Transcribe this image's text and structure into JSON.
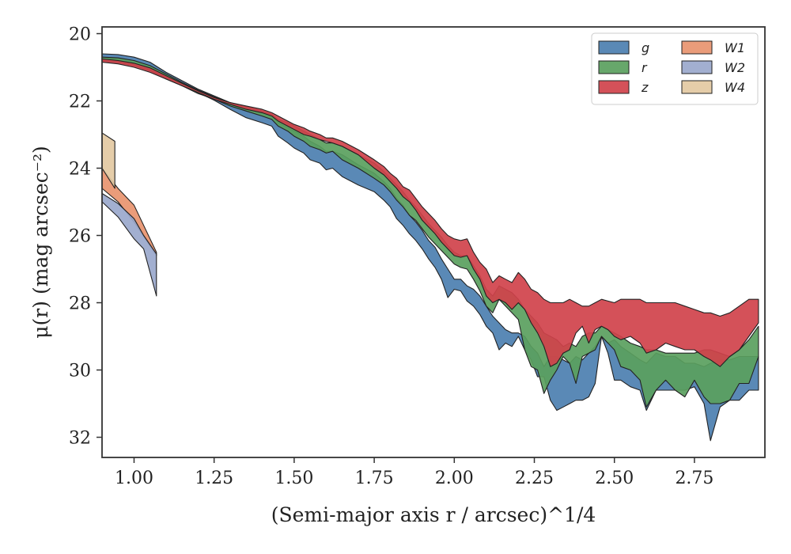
{
  "chart_data": {
    "type": "area",
    "ylabel": "μ(r) (mag arcsec⁻²)",
    "xlabel": "(Semi-major axis r / arcsec)^1/4",
    "xlim": [
      0.9,
      2.97
    ],
    "ylim": [
      32.6,
      19.8
    ],
    "y_inverted": true,
    "grid": false,
    "legend_position": "top-right",
    "legend_columns": 2,
    "x_ticks": [
      1.0,
      1.25,
      1.5,
      1.75,
      2.0,
      2.25,
      2.5,
      2.75
    ],
    "x_tick_labels": [
      "1.00",
      "1.25",
      "1.50",
      "1.75",
      "2.00",
      "2.25",
      "2.50",
      "2.75"
    ],
    "y_ticks": [
      20,
      22,
      24,
      26,
      28,
      30,
      32
    ],
    "y_tick_labels": [
      "20",
      "22",
      "24",
      "26",
      "28",
      "30",
      "32"
    ],
    "series": [
      {
        "name": "g",
        "color": "#4c7fb0",
        "x": [
          0.9,
          0.95,
          1.0,
          1.05,
          1.1,
          1.15,
          1.2,
          1.25,
          1.3,
          1.35,
          1.4,
          1.43,
          1.45,
          1.48,
          1.5,
          1.53,
          1.55,
          1.58,
          1.6,
          1.62,
          1.65,
          1.7,
          1.75,
          1.78,
          1.8,
          1.82,
          1.84,
          1.86,
          1.88,
          1.9,
          1.92,
          1.94,
          1.96,
          1.98,
          2.0,
          2.02,
          2.04,
          2.06,
          2.08,
          2.1,
          2.12,
          2.14,
          2.16,
          2.18,
          2.2,
          2.22,
          2.24,
          2.26,
          2.28,
          2.3,
          2.32,
          2.34,
          2.36,
          2.38,
          2.4,
          2.42,
          2.44,
          2.46,
          2.48,
          2.5,
          2.52,
          2.55,
          2.58,
          2.6,
          2.63,
          2.66,
          2.69,
          2.72,
          2.75,
          2.78,
          2.8,
          2.83,
          2.86,
          2.89,
          2.92,
          2.95
        ],
        "lower": [
          20.6,
          20.62,
          20.7,
          20.85,
          21.15,
          21.4,
          21.65,
          21.85,
          22.05,
          22.2,
          22.35,
          22.45,
          22.65,
          22.8,
          22.9,
          23.05,
          23.2,
          23.35,
          23.5,
          23.5,
          23.6,
          23.9,
          24.15,
          24.4,
          24.6,
          24.9,
          25.1,
          25.4,
          25.6,
          25.85,
          26.15,
          26.35,
          26.7,
          27.0,
          27.3,
          27.3,
          27.5,
          27.6,
          27.8,
          28.1,
          28.4,
          28.6,
          28.8,
          28.9,
          28.9,
          29.0,
          29.3,
          29.5,
          29.9,
          29.6,
          29.6,
          29.7,
          29.8,
          29.6,
          29.7,
          29.5,
          29.3,
          29.0,
          29.2,
          29.1,
          29.3,
          29.5,
          29.7,
          29.8,
          29.5,
          29.6,
          29.6,
          29.8,
          29.8,
          29.9,
          29.8,
          29.7,
          29.7,
          29.6,
          29.6,
          29.6
        ],
        "upper": [
          20.7,
          20.78,
          20.92,
          21.1,
          21.35,
          21.55,
          21.75,
          21.98,
          22.25,
          22.5,
          22.65,
          22.75,
          23.05,
          23.25,
          23.4,
          23.55,
          23.75,
          23.85,
          24.05,
          24.0,
          24.25,
          24.5,
          24.7,
          24.95,
          25.15,
          25.5,
          25.7,
          25.95,
          26.15,
          26.4,
          26.7,
          26.95,
          27.3,
          27.85,
          27.6,
          27.65,
          27.95,
          28.1,
          28.35,
          28.7,
          28.9,
          29.4,
          29.2,
          29.3,
          29.0,
          29.4,
          29.7,
          30.2,
          30.2,
          30.9,
          31.2,
          31.1,
          31.0,
          30.9,
          30.9,
          30.8,
          30.4,
          29.0,
          29.5,
          30.3,
          30.3,
          30.5,
          30.6,
          31.2,
          30.6,
          30.6,
          30.6,
          30.6,
          30.5,
          31.0,
          32.1,
          31.1,
          30.9,
          30.9,
          30.6,
          30.6
        ]
      },
      {
        "name": "r",
        "color": "#5aa05e",
        "x": [
          0.9,
          0.95,
          1.0,
          1.05,
          1.1,
          1.15,
          1.2,
          1.25,
          1.3,
          1.35,
          1.4,
          1.43,
          1.45,
          1.48,
          1.5,
          1.53,
          1.55,
          1.58,
          1.6,
          1.62,
          1.65,
          1.7,
          1.75,
          1.78,
          1.8,
          1.82,
          1.84,
          1.86,
          1.88,
          1.9,
          1.92,
          1.94,
          1.96,
          1.98,
          2.0,
          2.02,
          2.04,
          2.06,
          2.08,
          2.1,
          2.12,
          2.14,
          2.16,
          2.18,
          2.2,
          2.22,
          2.24,
          2.26,
          2.28,
          2.3,
          2.32,
          2.34,
          2.36,
          2.38,
          2.4,
          2.42,
          2.44,
          2.46,
          2.48,
          2.5,
          2.52,
          2.55,
          2.58,
          2.6,
          2.63,
          2.66,
          2.69,
          2.72,
          2.75,
          2.78,
          2.8,
          2.83,
          2.86,
          2.89,
          2.92,
          2.95
        ],
        "lower": [
          20.7,
          20.72,
          20.8,
          20.95,
          21.2,
          21.45,
          21.68,
          21.88,
          22.05,
          22.18,
          22.3,
          22.4,
          22.55,
          22.65,
          22.75,
          22.9,
          23.0,
          23.15,
          23.25,
          23.25,
          23.35,
          23.6,
          23.85,
          24.1,
          24.3,
          24.5,
          24.7,
          24.95,
          25.15,
          25.4,
          25.65,
          25.85,
          26.05,
          26.3,
          26.5,
          26.6,
          26.6,
          26.9,
          27.2,
          27.6,
          27.8,
          27.5,
          27.6,
          27.7,
          27.9,
          28.2,
          28.4,
          28.6,
          28.9,
          29.0,
          29.1,
          29.3,
          29.2,
          29.3,
          29.0,
          28.9,
          28.9,
          28.7,
          28.8,
          28.9,
          29.0,
          29.2,
          29.3,
          29.4,
          29.4,
          29.5,
          29.5,
          29.5,
          29.5,
          29.4,
          29.4,
          29.5,
          29.6,
          29.4,
          29.1,
          28.7
        ],
        "upper": [
          20.8,
          20.85,
          20.95,
          21.1,
          21.3,
          21.55,
          21.78,
          21.95,
          22.15,
          22.3,
          22.45,
          22.55,
          22.75,
          22.9,
          23.05,
          23.2,
          23.35,
          23.45,
          23.55,
          23.5,
          23.75,
          24.0,
          24.3,
          24.5,
          24.7,
          24.95,
          25.15,
          25.4,
          25.55,
          25.8,
          26.05,
          26.25,
          26.45,
          26.65,
          26.85,
          26.95,
          27.0,
          27.3,
          27.65,
          28.1,
          28.3,
          27.9,
          28.1,
          28.3,
          28.5,
          29.4,
          29.9,
          30.0,
          30.7,
          30.3,
          30.0,
          29.6,
          29.8,
          30.4,
          29.6,
          29.5,
          29.4,
          29.0,
          29.2,
          29.4,
          29.9,
          30.0,
          30.3,
          31.1,
          30.6,
          30.3,
          30.6,
          30.8,
          30.3,
          30.8,
          31.0,
          31.0,
          30.9,
          30.4,
          30.4,
          29.6
        ]
      },
      {
        "name": "z",
        "color": "#d0424b",
        "x": [
          0.9,
          0.95,
          1.0,
          1.05,
          1.1,
          1.15,
          1.2,
          1.25,
          1.3,
          1.35,
          1.4,
          1.43,
          1.45,
          1.48,
          1.5,
          1.53,
          1.55,
          1.58,
          1.6,
          1.62,
          1.65,
          1.7,
          1.75,
          1.78,
          1.8,
          1.82,
          1.84,
          1.86,
          1.88,
          1.9,
          1.92,
          1.94,
          1.96,
          1.98,
          2.0,
          2.02,
          2.04,
          2.06,
          2.08,
          2.1,
          2.12,
          2.14,
          2.16,
          2.18,
          2.2,
          2.22,
          2.24,
          2.26,
          2.28,
          2.3,
          2.32,
          2.34,
          2.36,
          2.38,
          2.4,
          2.42,
          2.44,
          2.46,
          2.48,
          2.5,
          2.52,
          2.55,
          2.58,
          2.6,
          2.63,
          2.66,
          2.69,
          2.72,
          2.75,
          2.78,
          2.8,
          2.83,
          2.86,
          2.89,
          2.92,
          2.95
        ],
        "lower": [
          20.75,
          20.8,
          20.88,
          21.02,
          21.25,
          21.48,
          21.7,
          21.9,
          22.05,
          22.15,
          22.25,
          22.35,
          22.45,
          22.6,
          22.7,
          22.8,
          22.9,
          23.0,
          23.1,
          23.1,
          23.2,
          23.45,
          23.75,
          23.95,
          24.15,
          24.3,
          24.55,
          24.65,
          24.9,
          25.15,
          25.35,
          25.55,
          25.8,
          26.0,
          26.1,
          26.15,
          26.1,
          26.5,
          26.8,
          27.0,
          27.4,
          27.2,
          27.3,
          27.4,
          27.1,
          27.3,
          27.6,
          27.7,
          27.9,
          28.0,
          28.0,
          28.0,
          27.9,
          28.0,
          28.1,
          28.1,
          28.0,
          27.9,
          27.95,
          28.0,
          27.9,
          27.9,
          27.9,
          28.0,
          28.0,
          28.0,
          28.0,
          28.1,
          28.2,
          28.3,
          28.3,
          28.4,
          28.3,
          28.1,
          27.9,
          27.9
        ],
        "upper": [
          20.85,
          20.9,
          21.0,
          21.15,
          21.35,
          21.55,
          21.75,
          21.95,
          22.1,
          22.25,
          22.35,
          22.45,
          22.6,
          22.75,
          22.85,
          23.0,
          23.05,
          23.15,
          23.2,
          23.25,
          23.35,
          23.6,
          24.0,
          24.2,
          24.4,
          24.6,
          24.85,
          25.0,
          25.25,
          25.55,
          25.75,
          25.95,
          26.2,
          26.4,
          26.6,
          26.65,
          26.6,
          27.0,
          27.3,
          27.8,
          28.0,
          27.9,
          28.0,
          28.2,
          28.0,
          28.2,
          28.6,
          28.9,
          29.3,
          29.9,
          29.8,
          29.5,
          29.4,
          28.9,
          28.7,
          29.2,
          28.8,
          28.7,
          28.8,
          29.0,
          29.1,
          29.0,
          29.2,
          29.5,
          29.4,
          29.2,
          29.3,
          29.4,
          29.4,
          29.6,
          29.7,
          29.9,
          29.6,
          29.4,
          29.0,
          28.6
        ]
      },
      {
        "name": "W1",
        "color": "#e8946f",
        "x": [
          0.9,
          0.95,
          1.0,
          1.07
        ],
        "lower": [
          24.0,
          24.6,
          25.1,
          26.5
        ],
        "upper": [
          24.6,
          25.0,
          25.6,
          26.6
        ]
      },
      {
        "name": "W2",
        "color": "#9aa8cc",
        "x": [
          0.9,
          0.95,
          1.0,
          1.03,
          1.07
        ],
        "lower": [
          24.75,
          25.05,
          25.5,
          26.0,
          26.55
        ],
        "upper": [
          25.0,
          25.45,
          26.1,
          26.4,
          27.8
        ]
      },
      {
        "name": "W4",
        "color": "#e3c9a2",
        "x": [
          0.9,
          0.94
        ],
        "lower": [
          22.95,
          23.2
        ],
        "upper": [
          24.0,
          24.6
        ]
      }
    ]
  }
}
